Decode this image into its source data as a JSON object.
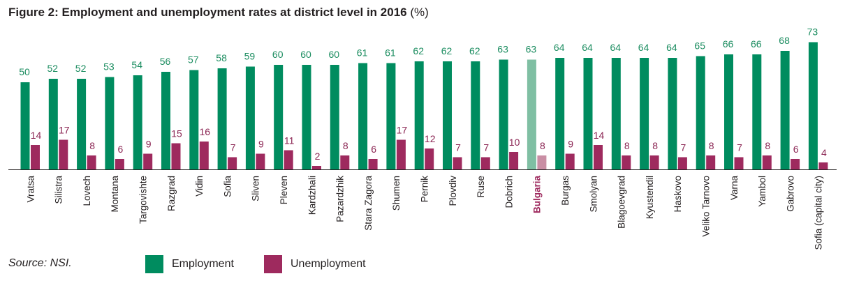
{
  "title": "Figure 2: Employment and unemployment rates at district level in 2016",
  "title_unit": "(%)",
  "source": "Source: NSI.",
  "colors": {
    "employment": "#008c5f",
    "unemployment": "#9e2a5e",
    "employment_highlight": "#7fbfa3",
    "unemployment_highlight": "#c98ea4",
    "highlight_label": "#9e2a5e",
    "employment_label": "#1a8c5f",
    "unemployment_label": "#8b2553"
  },
  "chart_data": {
    "type": "bar",
    "categories": [
      "Vratsa",
      "Silistra",
      "Lovech",
      "Montana",
      "Targovishte",
      "Razgrad",
      "Vidin",
      "Sofia",
      "Sliven",
      "Pleven",
      "Kardzhali",
      "Pazardzhik",
      "Stara Zagora",
      "Shumen",
      "Pernik",
      "Plovdiv",
      "Ruse",
      "Dobrich",
      "Bulgaria",
      "Burgas",
      "Smolyan",
      "Blagoevgrad",
      "Kyustendil",
      "Haskovo",
      "Veliko Tarnovo",
      "Varna",
      "Yambol",
      "Gabrovo",
      "Sofia (capital city)"
    ],
    "highlight_category": "Bulgaria",
    "series": [
      {
        "name": "Employment",
        "values": [
          50,
          52,
          52,
          53,
          54,
          56,
          57,
          58,
          59,
          60,
          60,
          60,
          61,
          61,
          62,
          62,
          62,
          63,
          63,
          64,
          64,
          64,
          64,
          64,
          65,
          66,
          66,
          68,
          73
        ]
      },
      {
        "name": "Unemployment",
        "values": [
          14,
          17,
          8,
          6,
          9,
          15,
          16,
          7,
          9,
          11,
          2,
          8,
          6,
          17,
          12,
          7,
          7,
          10,
          8,
          9,
          14,
          8,
          8,
          7,
          8,
          7,
          8,
          6,
          4
        ]
      }
    ],
    "ylim": [
      0,
      73
    ],
    "legend": "bottom"
  }
}
